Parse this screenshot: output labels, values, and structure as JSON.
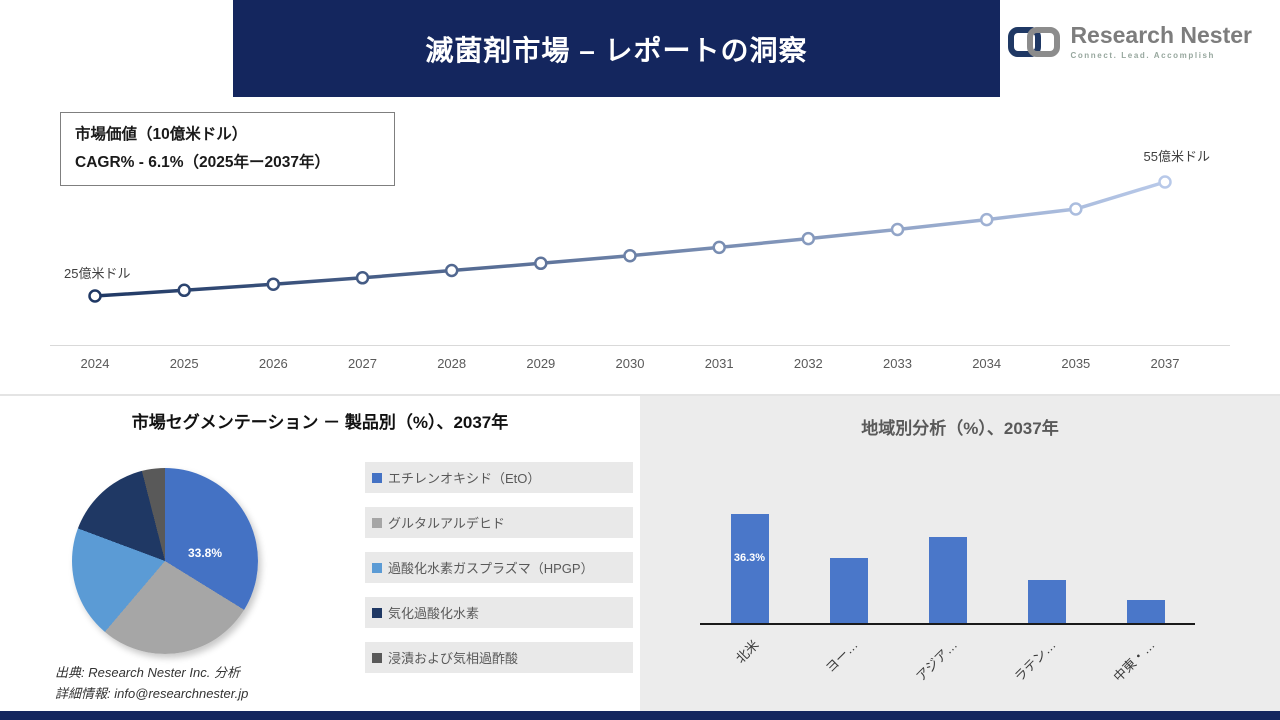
{
  "header": {
    "title": "滅菌剤市場 – レポートの洞察",
    "logo": {
      "name": "Research Nester",
      "tagline": "Connect. Lead. Accomplish"
    }
  },
  "info_box": {
    "line1": "市場価値（10億米ドル）",
    "line2": "CAGR% - 6.1%（2025年ー2037年）"
  },
  "colors": {
    "banner_navy": "#14265e",
    "line_start": "#1f3864",
    "line_end": "#b8c9e9",
    "bar_blue": "#4a77c9",
    "right_panel_bg": "#ececec",
    "pie": [
      "#4472c4",
      "#a6a6a6",
      "#5b9bd5",
      "#1f3864",
      "#595959"
    ]
  },
  "chart_data": [
    {
      "type": "line",
      "title": "市場価値（10億米ドル）",
      "x": [
        "2024",
        "2025",
        "2026",
        "2027",
        "2028",
        "2029",
        "2030",
        "2031",
        "2032",
        "2033",
        "2034",
        "2035",
        "2037"
      ],
      "values": [
        2.5,
        2.65,
        2.81,
        2.98,
        3.17,
        3.36,
        3.56,
        3.78,
        4.01,
        4.25,
        4.51,
        4.79,
        5.5
      ],
      "start_label": "25億米ドル",
      "end_label": "55億米ドル",
      "grid": false,
      "legend_position": "none"
    },
    {
      "type": "pie",
      "title": "市場セグメンテーション － 製品別（%）、2037年",
      "labels": [
        "エチレンオキシド（EtO）",
        "グルタルアルデヒド",
        "過酸化水素ガスプラズマ（HPGP）",
        "気化過酸化水素",
        "浸漬および気相過酢酸"
      ],
      "values": [
        33.8,
        27.4,
        19.5,
        15.3,
        4.0
      ],
      "callout": "33.8%",
      "legend_position": "right"
    },
    {
      "type": "bar",
      "title": "地域別分析（%）、2037年",
      "categories": [
        "北米",
        "ヨー…",
        "アジア…",
        "ラテン…",
        "中東・…"
      ],
      "values": [
        36.3,
        21.8,
        28.6,
        14.5,
        7.7
      ],
      "bar_label": "36.3%",
      "ylim": [
        0,
        40
      ],
      "grid": false
    }
  ],
  "source": {
    "line1": "出典: Research Nester Inc. 分析",
    "line2": "詳細情報: info@researchnester.jp"
  }
}
